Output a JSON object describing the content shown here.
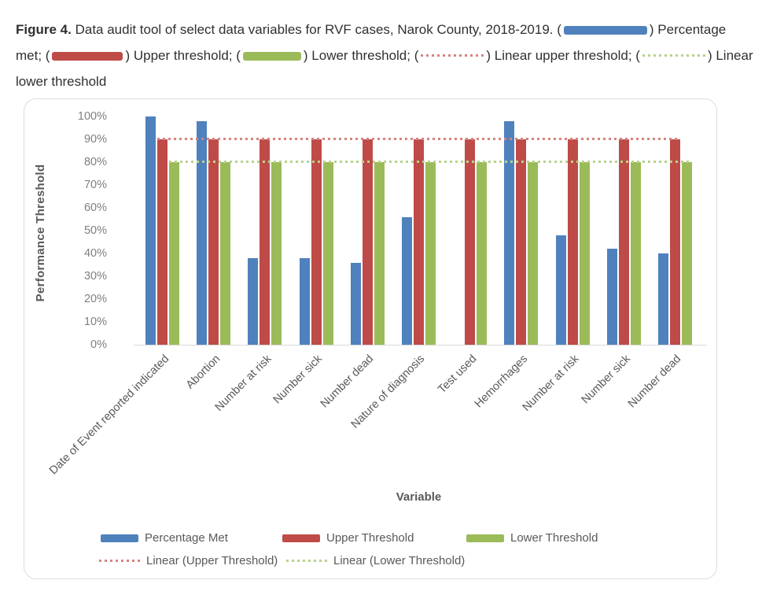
{
  "caption": {
    "label": "Figure 4.",
    "seg_intro": " Data audit tool of select data variables for RVF cases, Narok County, 2018-2019. (",
    "seg_after_blue": ") Percentage met; (",
    "seg_after_red": ") Upper threshold; (",
    "seg_after_green": ") Lower threshold; (",
    "seg_after_red_dotted": ") Linear upper threshold; (",
    "seg_after_green_dotted": ") Linear lower threshold"
  },
  "colors": {
    "percentage_met": "#4F81BD",
    "upper_threshold": "#BE4B48",
    "lower_threshold": "#9BBB59",
    "linear_upper": "#D6837F",
    "linear_lower": "#B9D18C",
    "axis_tick_text": "#7F7F7F",
    "axis_title_text": "#595959",
    "legend_text": "#595959",
    "card_border": "#DCDCDC",
    "axis_line": "#D9D9D9",
    "caption_text": "#303030"
  },
  "chart_data": {
    "type": "bar",
    "title": "",
    "xlabel": "Variable",
    "ylabel": "Performance Threshold",
    "ylim": [
      0,
      100
    ],
    "yticks": [
      "100%",
      "90%",
      "80%",
      "70%",
      "60%",
      "50%",
      "40%",
      "30%",
      "20%",
      "10%",
      "0%"
    ],
    "grid": false,
    "legend_position": "bottom",
    "categories": [
      "Date of Event reported indicated",
      "Abortion",
      "Number at risk",
      "Number sick",
      "Number dead",
      "Nature of diagnosis",
      "Test used",
      "Hemorrhages",
      "Number at risk",
      "Number sick",
      "Number dead"
    ],
    "series": [
      {
        "name": "Percentage Met",
        "color_key": "percentage_met",
        "values": [
          100,
          98,
          38,
          38,
          36,
          56,
          0,
          98,
          48,
          42,
          40
        ]
      },
      {
        "name": "Upper Threshold",
        "color_key": "upper_threshold",
        "values": [
          90,
          90,
          90,
          90,
          90,
          90,
          90,
          90,
          90,
          90,
          90
        ]
      },
      {
        "name": "Lower Threshold",
        "color_key": "lower_threshold",
        "values": [
          80,
          80,
          80,
          80,
          80,
          80,
          80,
          80,
          80,
          80,
          80
        ]
      }
    ],
    "trendlines": [
      {
        "name": "Linear (Upper Threshold)",
        "value": 90,
        "color_key": "linear_upper"
      },
      {
        "name": "Linear (Lower Threshold)",
        "value": 80,
        "color_key": "linear_lower"
      }
    ]
  }
}
